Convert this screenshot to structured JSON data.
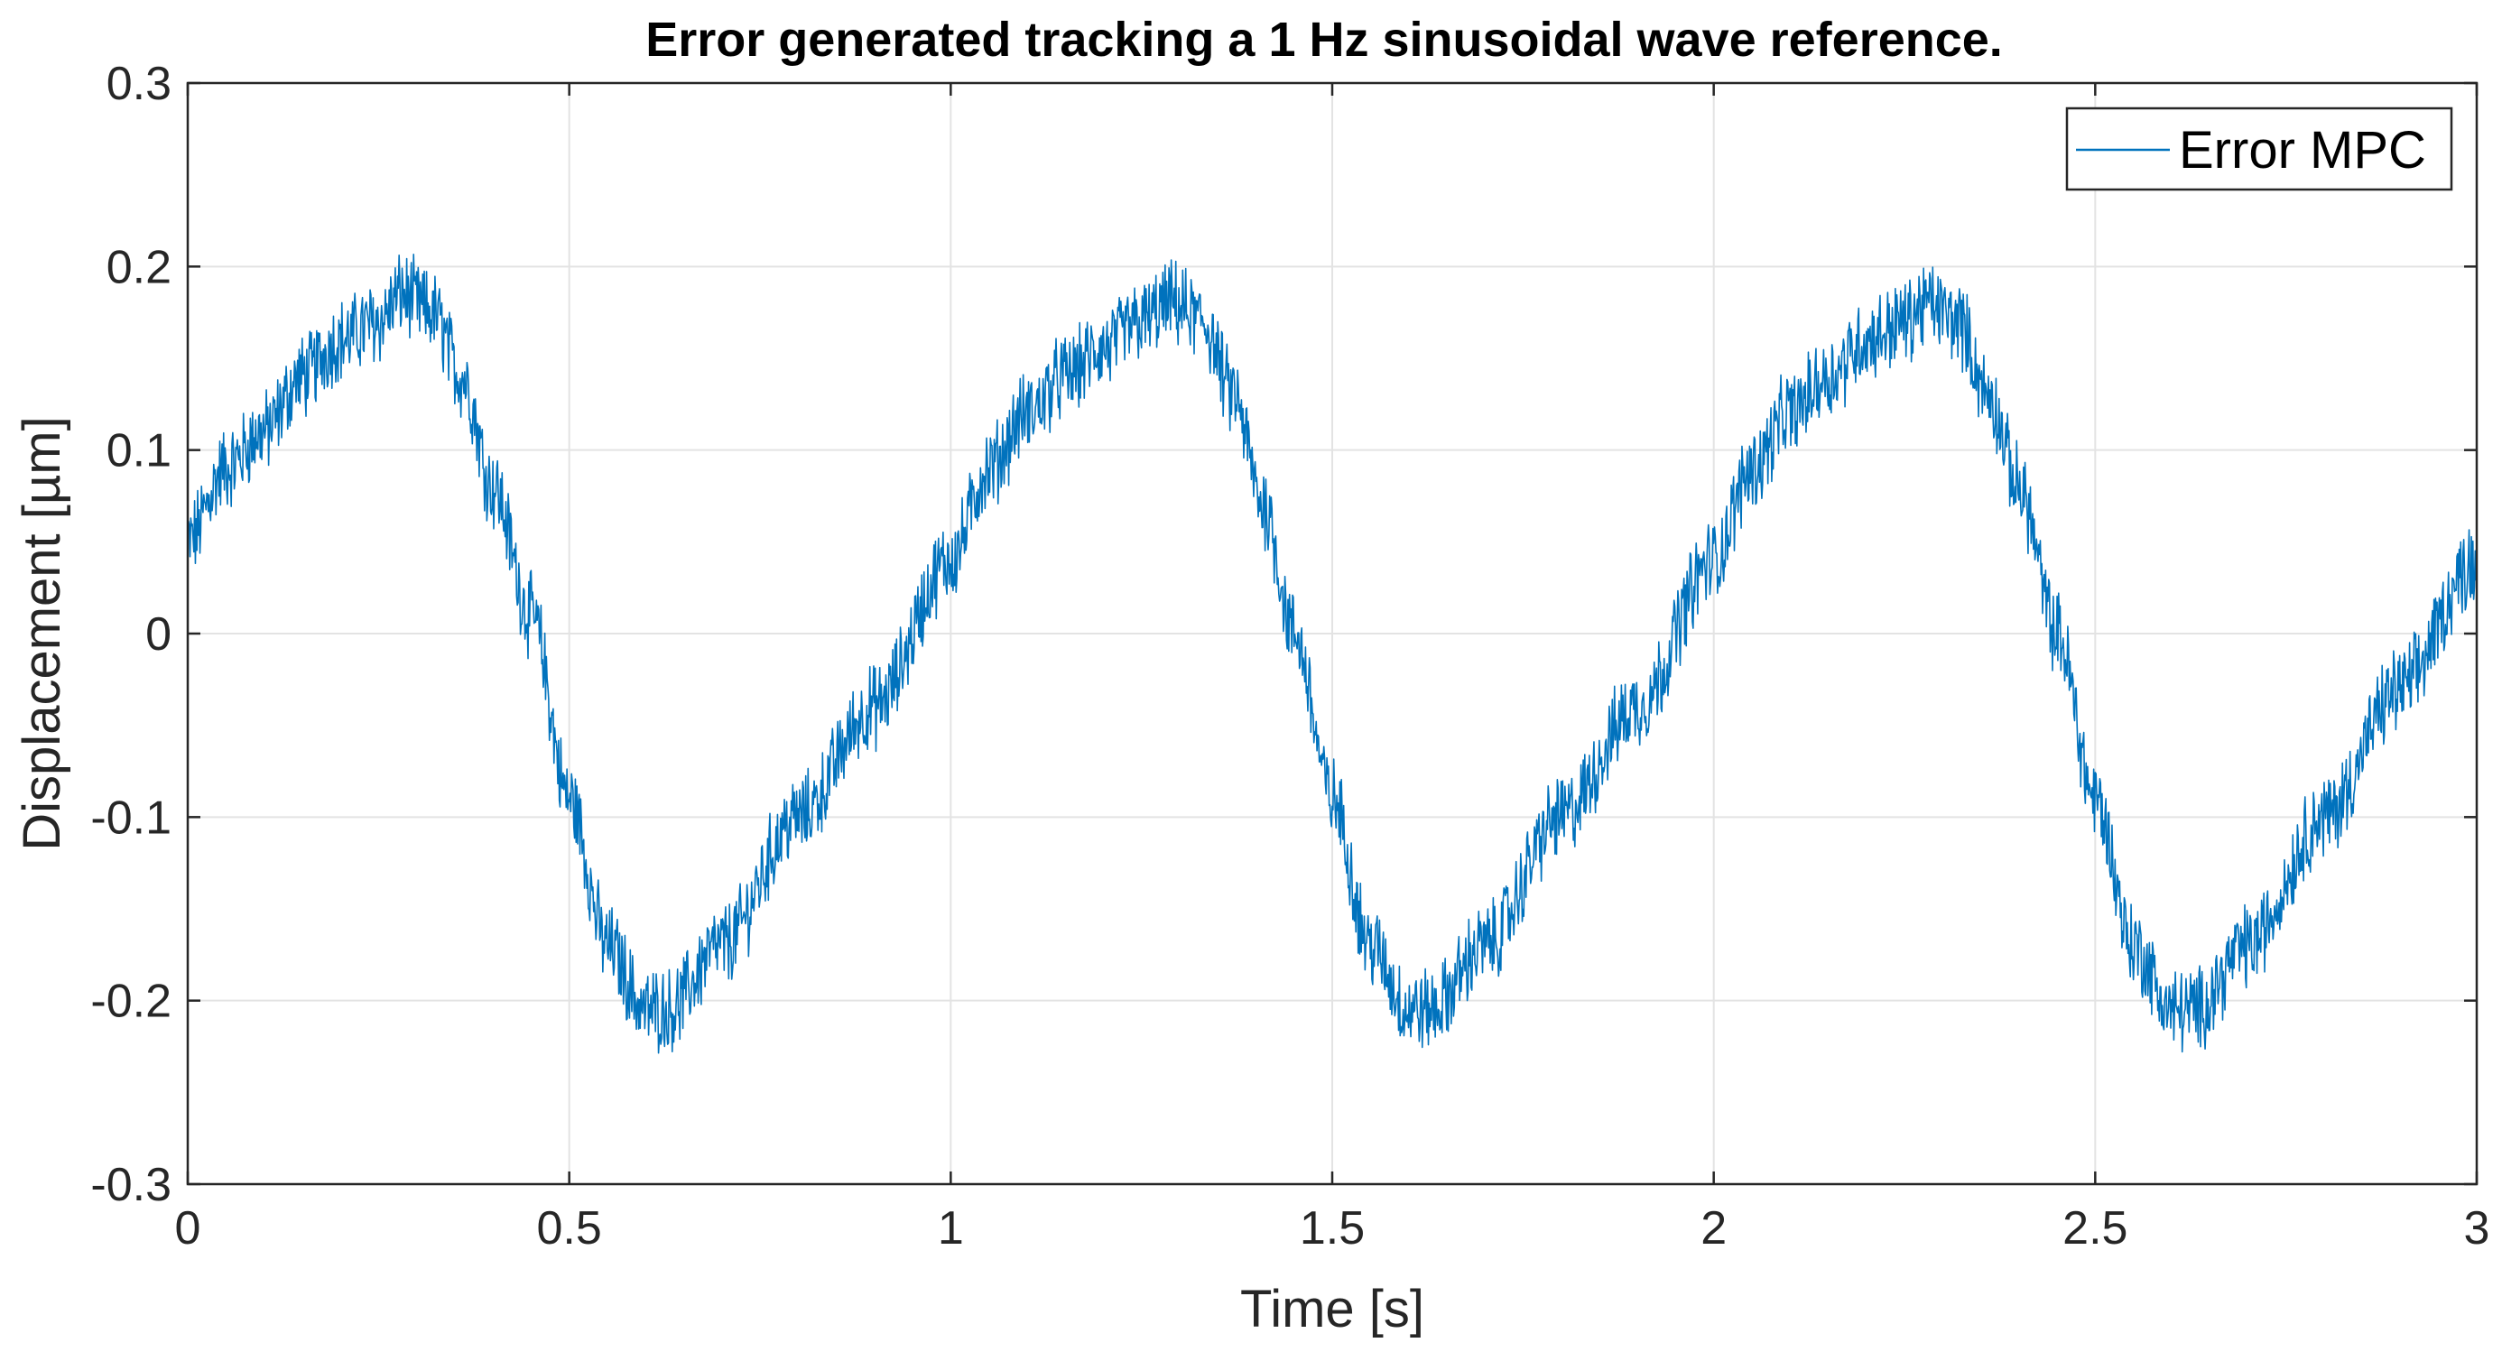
{
  "chart_data": {
    "type": "line",
    "title": "Error generated tracking a 1 Hz sinusoidal wave reference.",
    "xlabel": "Time [s]",
    "ylabel": "Displacement  [µm]",
    "xlim": [
      0,
      3
    ],
    "ylim": [
      -0.3,
      0.3
    ],
    "xticks": [
      0,
      0.5,
      1,
      1.5,
      2,
      2.5,
      3
    ],
    "xtick_labels": [
      "0",
      "0.5",
      "1",
      "1.5",
      "2",
      "2.5",
      "3"
    ],
    "yticks": [
      -0.3,
      -0.2,
      -0.1,
      0,
      0.1,
      0.2,
      0.3
    ],
    "ytick_labels": [
      "-0.3",
      "-0.2",
      "-0.1",
      "0",
      "0.1",
      "0.2",
      "0.3"
    ],
    "grid": true,
    "legend_position": "top-right",
    "series": [
      {
        "name": "Error MPC",
        "color": "#0072BD",
        "description_of_shape": "approximately periodic error with ~1 s period plus high-frequency noise",
        "x": [
          0.0,
          0.05,
          0.1,
          0.15,
          0.2,
          0.25,
          0.28,
          0.32,
          0.36,
          0.4,
          0.45,
          0.5,
          0.55,
          0.6,
          0.63,
          0.7,
          0.8,
          0.9,
          1.0,
          1.05,
          1.1,
          1.15,
          1.2,
          1.25,
          1.29,
          1.33,
          1.37,
          1.41,
          1.45,
          1.5,
          1.55,
          1.6,
          1.63,
          1.7,
          1.8,
          1.9,
          2.0,
          2.05,
          2.1,
          2.15,
          2.2,
          2.25,
          2.28,
          2.32,
          2.36,
          2.4,
          2.45,
          2.5,
          2.55,
          2.6,
          2.63,
          2.7,
          2.8,
          2.9,
          3.0
        ],
        "y": [
          0.05,
          0.09,
          0.11,
          0.14,
          0.16,
          0.17,
          0.185,
          0.175,
          0.14,
          0.08,
          0.01,
          -0.09,
          -0.17,
          -0.205,
          -0.205,
          -0.17,
          -0.1,
          -0.04,
          0.04,
          0.09,
          0.12,
          0.14,
          0.155,
          0.17,
          0.18,
          0.17,
          0.13,
          0.07,
          0.0,
          -0.09,
          -0.17,
          -0.205,
          -0.205,
          -0.17,
          -0.1,
          -0.04,
          0.04,
          0.09,
          0.12,
          0.14,
          0.16,
          0.17,
          0.18,
          0.17,
          0.13,
          0.08,
          0.0,
          -0.09,
          -0.17,
          -0.205,
          -0.205,
          -0.17,
          -0.1,
          -0.03,
          0.04
        ],
        "noise_amplitude": 0.02
      }
    ]
  }
}
